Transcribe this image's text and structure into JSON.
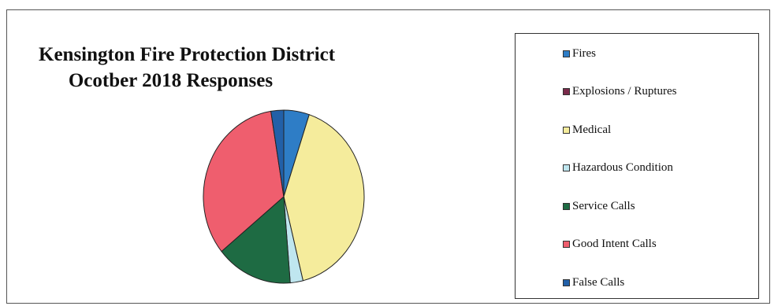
{
  "chart_data": {
    "type": "pie",
    "title_lines": [
      "Kensington Fire Protection District",
      "Ocotber 2018 Responses"
    ],
    "categories": [
      "Fires",
      "Explosions / Ruptures",
      "Medical",
      "Hazardous Condition",
      "Service Calls",
      "Good Intent Calls",
      "False Calls"
    ],
    "values": [
      2,
      0,
      16,
      1,
      6,
      13,
      1
    ],
    "colors": [
      "#2e7dc6",
      "#7a2a4a",
      "#f5ec9c",
      "#bfe6ef",
      "#1e6b43",
      "#ef5e6e",
      "#2260a8"
    ],
    "legend_position": "right"
  }
}
